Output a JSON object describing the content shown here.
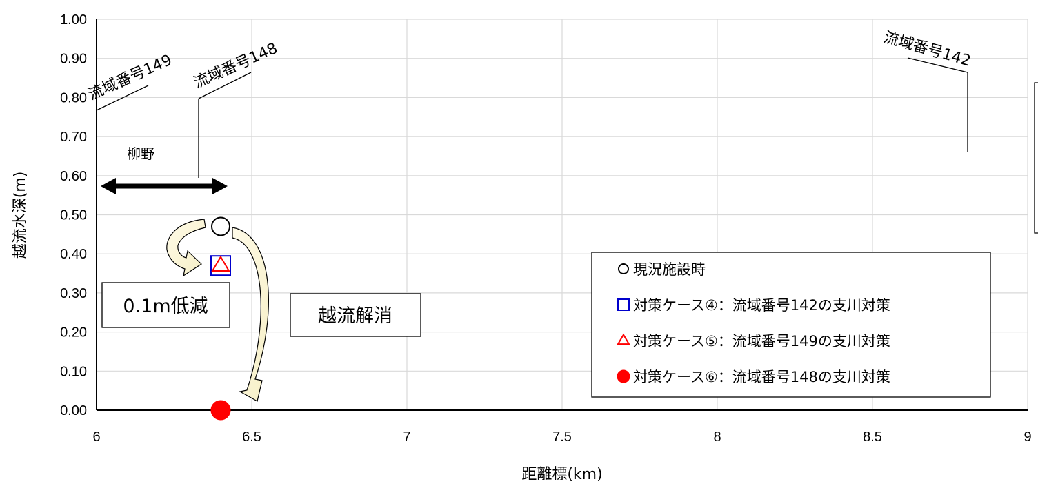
{
  "chart_data": {
    "type": "scatter",
    "xlabel": "距離標(km)",
    "ylabel": "越流水深(m)",
    "xlim": [
      6,
      9
    ],
    "ylim": [
      0,
      1
    ],
    "x_ticks": [
      "6",
      "6.5",
      "7",
      "7.5",
      "8",
      "8.5",
      "9"
    ],
    "y_ticks": [
      "0.00",
      "0.10",
      "0.20",
      "0.30",
      "0.40",
      "0.50",
      "0.60",
      "0.70",
      "0.80",
      "0.90",
      "1.00"
    ],
    "grid": true,
    "legend_position": "lower-right",
    "series": [
      {
        "name": "現況施設時",
        "marker": "circle-open",
        "color": "#000000",
        "points": [
          {
            "x": 6.4,
            "y": 0.47
          }
        ]
      },
      {
        "name": "対策ケース④：流域番号142の支川対策",
        "marker": "square-open",
        "color": "#0000cc",
        "points": [
          {
            "x": 6.4,
            "y": 0.37
          }
        ]
      },
      {
        "name": "対策ケース⑤：流域番号149の支川対策",
        "marker": "triangle-open",
        "color": "#ff0000",
        "points": [
          {
            "x": 6.4,
            "y": 0.37
          }
        ]
      },
      {
        "name": "対策ケース⑥：流域番号148の支川対策",
        "marker": "circle-filled",
        "color": "#ff0000",
        "points": [
          {
            "x": 6.4,
            "y": 0.0
          }
        ]
      }
    ],
    "annotations": {
      "basin_149": "流域番号149",
      "basin_148": "流域番号148",
      "basin_142": "流域番号142",
      "region": "柳野",
      "reduction": "0.1m低減",
      "resolved": "越流解消"
    },
    "reference_lines": [
      {
        "label": "流域番号149",
        "x": 6.0,
        "y_range": [
          0.57,
          0.77
        ]
      },
      {
        "label": "流域番号148",
        "x": 6.33,
        "y_range": [
          0.59,
          0.84
        ]
      },
      {
        "label": "流域番号142",
        "x": 8.8,
        "y_range": [
          0.66,
          0.86
        ]
      }
    ],
    "region_span": {
      "label": "柳野",
      "x_range": [
        6.0,
        6.42
      ],
      "y": 0.565
    }
  }
}
